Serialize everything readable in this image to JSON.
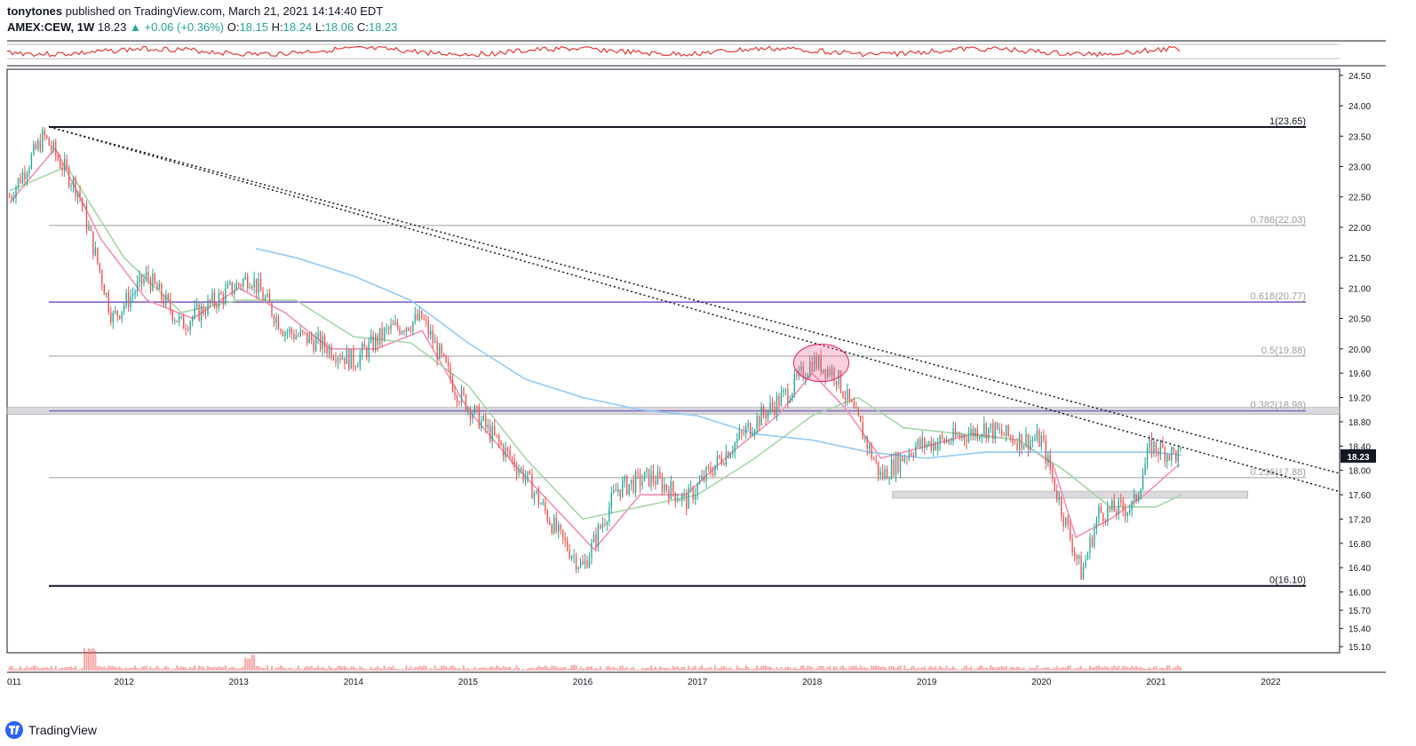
{
  "header": {
    "publisher": "tonytones",
    "published_text": "published on TradingView.com, March 21, 2021 14:14:40 EDT",
    "symbol": "AMEX:CEW, 1W",
    "last": "18.23",
    "change": "▲ +0.06 (+0.36%)",
    "o_label": "O:",
    "o": "18.15",
    "h_label": "H:",
    "h": "18.24",
    "l_label": "L:",
    "l": "18.06",
    "c_label": "C:",
    "c": "18.23"
  },
  "footer": {
    "brand": "TradingView"
  },
  "colors": {
    "up": "#26a69a",
    "down": "#ef5350",
    "fast_ma": "#f48fb1",
    "mid_ma": "#a5d6a7",
    "slow_ma": "#90caf9",
    "fib_purple": "#7e57c2",
    "rsi": "#e53935",
    "grid": "#e0e3eb"
  },
  "chart_data": {
    "type": "line",
    "title": "",
    "ylim": [
      15.0,
      24.6
    ],
    "y_ticks": [
      "24.50",
      "24.00",
      "23.50",
      "23.00",
      "22.50",
      "22.00",
      "21.50",
      "21.00",
      "20.50",
      "20.00",
      "19.60",
      "19.20",
      "18.80",
      "18.40",
      "18.00",
      "17.60",
      "17.20",
      "16.80",
      "16.40",
      "16.00",
      "15.70",
      "15.40",
      "15.10"
    ],
    "x_ticks": [
      "011",
      "2012",
      "2013",
      "2014",
      "2015",
      "2016",
      "2017",
      "2018",
      "2019",
      "2020",
      "2021",
      "2022"
    ],
    "fib_levels": [
      {
        "label": "1(23.65)",
        "value": 23.65
      },
      {
        "label": "0.786(22.03)",
        "value": 22.03
      },
      {
        "label": "0.618(20.77)",
        "value": 20.77
      },
      {
        "label": "0.5(19.88)",
        "value": 19.88
      },
      {
        "label": "0.382(18.98)",
        "value": 18.98
      },
      {
        "label": "0.236(17.88)",
        "value": 17.88
      },
      {
        "label": "0(16.10)",
        "value": 16.1
      }
    ],
    "last_price_label": "18.23",
    "series": [
      {
        "values_by_year": [
          [
            2011.0,
            22.5
          ],
          [
            2011.3,
            23.5
          ],
          [
            2011.6,
            22.6
          ],
          [
            2011.9,
            20.5
          ],
          [
            2012.2,
            21.2
          ],
          [
            2012.5,
            20.4
          ],
          [
            2012.8,
            20.8
          ],
          [
            2013.1,
            21.2
          ],
          [
            2013.4,
            20.3
          ],
          [
            2013.7,
            20.1
          ],
          [
            2014.0,
            19.8
          ],
          [
            2014.3,
            20.3
          ],
          [
            2014.6,
            20.5
          ],
          [
            2014.9,
            19.3
          ],
          [
            2015.2,
            18.6
          ],
          [
            2015.5,
            17.9
          ],
          [
            2015.8,
            16.9
          ],
          [
            2016.0,
            16.4
          ],
          [
            2016.3,
            17.7
          ],
          [
            2016.6,
            17.9
          ],
          [
            2016.9,
            17.5
          ],
          [
            2017.2,
            18.2
          ],
          [
            2017.5,
            18.8
          ],
          [
            2017.8,
            19.3
          ],
          [
            2018.0,
            19.8
          ],
          [
            2018.2,
            19.6
          ],
          [
            2018.4,
            18.8
          ],
          [
            2018.6,
            17.9
          ],
          [
            2018.9,
            18.4
          ],
          [
            2019.2,
            18.5
          ],
          [
            2019.5,
            18.7
          ],
          [
            2019.8,
            18.5
          ],
          [
            2020.0,
            18.5
          ],
          [
            2020.2,
            17.2
          ],
          [
            2020.35,
            16.3
          ],
          [
            2020.5,
            17.3
          ],
          [
            2020.8,
            17.4
          ],
          [
            2020.95,
            18.4
          ],
          [
            2021.1,
            18.3
          ],
          [
            2021.22,
            18.23
          ]
        ]
      }
    ],
    "moving_averages": [
      {
        "values_by_year": [
          [
            2011.0,
            22.4
          ],
          [
            2011.4,
            23.3
          ],
          [
            2011.8,
            21.8
          ],
          [
            2012.2,
            20.8
          ],
          [
            2012.6,
            20.5
          ],
          [
            2013.0,
            21.0
          ],
          [
            2013.4,
            20.6
          ],
          [
            2013.8,
            20.0
          ],
          [
            2014.2,
            20.0
          ],
          [
            2014.6,
            20.3
          ],
          [
            2015.0,
            19.0
          ],
          [
            2015.4,
            18.1
          ],
          [
            2015.8,
            17.3
          ],
          [
            2016.1,
            16.7
          ],
          [
            2016.5,
            17.6
          ],
          [
            2016.9,
            17.6
          ],
          [
            2017.3,
            18.3
          ],
          [
            2017.7,
            18.9
          ],
          [
            2018.0,
            19.6
          ],
          [
            2018.3,
            19.0
          ],
          [
            2018.6,
            18.2
          ],
          [
            2019.0,
            18.4
          ],
          [
            2019.4,
            18.6
          ],
          [
            2019.8,
            18.5
          ],
          [
            2020.1,
            18.1
          ],
          [
            2020.3,
            16.9
          ],
          [
            2020.6,
            17.2
          ],
          [
            2020.9,
            17.6
          ],
          [
            2021.2,
            18.1
          ]
        ]
      },
      {
        "values_by_year": [
          [
            2011.0,
            22.6
          ],
          [
            2011.5,
            23.0
          ],
          [
            2012.0,
            21.5
          ],
          [
            2012.5,
            20.6
          ],
          [
            2013.0,
            20.8
          ],
          [
            2013.5,
            20.8
          ],
          [
            2014.0,
            20.2
          ],
          [
            2014.5,
            20.1
          ],
          [
            2015.0,
            19.4
          ],
          [
            2015.5,
            18.2
          ],
          [
            2016.0,
            17.2
          ],
          [
            2016.5,
            17.4
          ],
          [
            2017.0,
            17.6
          ],
          [
            2017.5,
            18.2
          ],
          [
            2018.0,
            18.9
          ],
          [
            2018.4,
            19.2
          ],
          [
            2018.8,
            18.7
          ],
          [
            2019.3,
            18.6
          ],
          [
            2019.8,
            18.5
          ],
          [
            2020.2,
            18.0
          ],
          [
            2020.6,
            17.4
          ],
          [
            2021.0,
            17.4
          ],
          [
            2021.22,
            17.6
          ]
        ]
      },
      {
        "values_by_year": [
          [
            2013.15,
            21.65
          ],
          [
            2013.5,
            21.5
          ],
          [
            2014.0,
            21.2
          ],
          [
            2014.5,
            20.8
          ],
          [
            2015.0,
            20.1
          ],
          [
            2015.5,
            19.5
          ],
          [
            2016.0,
            19.2
          ],
          [
            2016.5,
            19.0
          ],
          [
            2017.0,
            18.9
          ],
          [
            2017.5,
            18.6
          ],
          [
            2018.0,
            18.5
          ],
          [
            2018.5,
            18.3
          ],
          [
            2019.0,
            18.2
          ],
          [
            2019.5,
            18.3
          ],
          [
            2020.0,
            18.3
          ],
          [
            2020.5,
            18.3
          ],
          [
            2021.0,
            18.3
          ],
          [
            2021.22,
            18.25
          ]
        ]
      }
    ],
    "trendlines": [
      {
        "from": [
          2011.35,
          23.65
        ],
        "to": [
          2022.6,
          17.65
        ]
      },
      {
        "from": [
          2011.35,
          23.65
        ],
        "to": [
          2022.6,
          17.95
        ]
      }
    ],
    "support_zones": [
      {
        "from": 2010.0,
        "to": 2022.6,
        "value": 18.98
      },
      {
        "from": 2018.7,
        "to": 2021.8,
        "value": 17.6
      }
    ],
    "highlight_ellipse": {
      "center": [
        2018.08,
        19.77
      ]
    }
  }
}
